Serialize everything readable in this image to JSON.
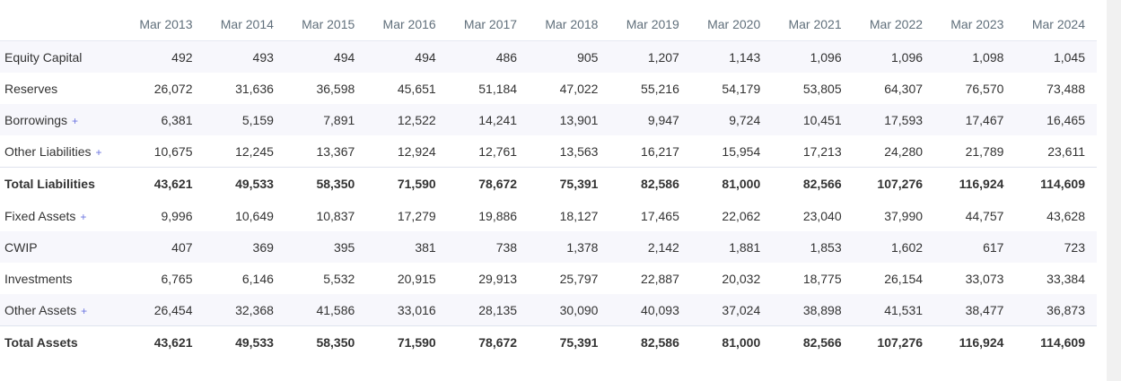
{
  "table": {
    "header_label": "",
    "years": [
      "Mar 2013",
      "Mar 2014",
      "Mar 2015",
      "Mar 2016",
      "Mar 2017",
      "Mar 2018",
      "Mar 2019",
      "Mar 2020",
      "Mar 2021",
      "Mar 2022",
      "Mar 2023",
      "Mar 2024"
    ],
    "expand_symbol": "+",
    "rows": [
      {
        "label": "Equity Capital",
        "expandable": false,
        "total": false,
        "values": [
          "492",
          "493",
          "494",
          "494",
          "486",
          "905",
          "1,207",
          "1,143",
          "1,096",
          "1,096",
          "1,098",
          "1,045"
        ]
      },
      {
        "label": "Reserves",
        "expandable": false,
        "total": false,
        "values": [
          "26,072",
          "31,636",
          "36,598",
          "45,651",
          "51,184",
          "47,022",
          "55,216",
          "54,179",
          "53,805",
          "64,307",
          "76,570",
          "73,488"
        ]
      },
      {
        "label": "Borrowings",
        "expandable": true,
        "total": false,
        "values": [
          "6,381",
          "5,159",
          "7,891",
          "12,522",
          "14,241",
          "13,901",
          "9,947",
          "9,724",
          "10,451",
          "17,593",
          "17,467",
          "16,465"
        ]
      },
      {
        "label": "Other Liabilities",
        "expandable": true,
        "total": false,
        "values": [
          "10,675",
          "12,245",
          "13,367",
          "12,924",
          "12,761",
          "13,563",
          "16,217",
          "15,954",
          "17,213",
          "24,280",
          "21,789",
          "23,611"
        ]
      },
      {
        "label": "Total Liabilities",
        "expandable": false,
        "total": true,
        "values": [
          "43,621",
          "49,533",
          "58,350",
          "71,590",
          "78,672",
          "75,391",
          "82,586",
          "81,000",
          "82,566",
          "107,276",
          "116,924",
          "114,609"
        ]
      },
      {
        "label": "Fixed Assets",
        "expandable": true,
        "total": false,
        "values": [
          "9,996",
          "10,649",
          "10,837",
          "17,279",
          "19,886",
          "18,127",
          "17,465",
          "22,062",
          "23,040",
          "37,990",
          "44,757",
          "43,628"
        ]
      },
      {
        "label": "CWIP",
        "expandable": false,
        "total": false,
        "values": [
          "407",
          "369",
          "395",
          "381",
          "738",
          "1,378",
          "2,142",
          "1,881",
          "1,853",
          "1,602",
          "617",
          "723"
        ]
      },
      {
        "label": "Investments",
        "expandable": false,
        "total": false,
        "values": [
          "6,765",
          "6,146",
          "5,532",
          "20,915",
          "29,913",
          "25,797",
          "22,887",
          "20,032",
          "18,775",
          "26,154",
          "33,073",
          "33,384"
        ]
      },
      {
        "label": "Other Assets",
        "expandable": true,
        "total": false,
        "values": [
          "26,454",
          "32,368",
          "41,586",
          "33,016",
          "28,135",
          "30,090",
          "40,093",
          "37,024",
          "38,898",
          "41,531",
          "38,477",
          "36,873"
        ]
      },
      {
        "label": "Total Assets",
        "expandable": false,
        "total": true,
        "values": [
          "43,621",
          "49,533",
          "58,350",
          "71,590",
          "78,672",
          "75,391",
          "82,586",
          "81,000",
          "82,566",
          "107,276",
          "116,924",
          "114,609"
        ]
      }
    ]
  },
  "colors": {
    "header_text": "#606f7b",
    "expand_plus": "#6b74e0",
    "stripe": "#f7f7fc"
  }
}
